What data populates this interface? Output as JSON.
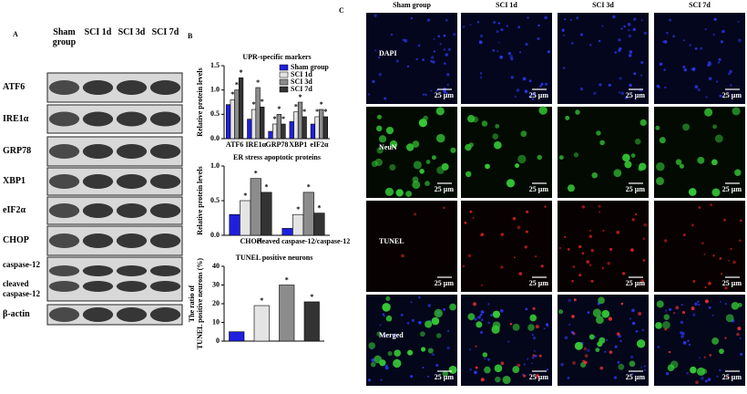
{
  "panel_labels": [
    "A",
    "B",
    "C"
  ],
  "blot": {
    "columns": [
      "Sham group",
      "SCI 1d",
      "SCI 3d",
      "SCI 7d"
    ],
    "rows": [
      "ATF6",
      "IRE1α",
      "GRP78",
      "XBP1",
      "eIF2α",
      "CHOP",
      "caspase-12",
      "cleaved caspase-12",
      "β-actin"
    ]
  },
  "chart_data": [
    {
      "type": "bar",
      "title": "UPR-specific markers",
      "y_label": "Relative protein levels",
      "categories": [
        "ATF6",
        "IRE1α",
        "GRP78",
        "XBP1",
        "eIF2α"
      ],
      "series": [
        {
          "name": "Sham group",
          "color": "#1f1fe0",
          "values": [
            0.7,
            0.4,
            0.15,
            0.35,
            0.3
          ]
        },
        {
          "name": "SCI 1d",
          "color": "#e4e4e4",
          "values": [
            0.8,
            0.6,
            0.3,
            0.55,
            0.45
          ],
          "annotations": [
            "*",
            "*",
            "*",
            "*",
            "*"
          ]
        },
        {
          "name": "SCI 3d",
          "color": "#8c8c8c",
          "values": [
            1.0,
            1.05,
            0.5,
            0.75,
            0.6
          ],
          "annotations": [
            "*",
            "*",
            "*",
            "*",
            "*"
          ]
        },
        {
          "name": "SCI 7d",
          "color": "#333333",
          "values": [
            1.25,
            0.65,
            0.3,
            0.45,
            0.45
          ],
          "annotations": [
            "*",
            "*",
            "*",
            "*",
            "*"
          ]
        }
      ],
      "ylim": [
        0,
        1.5
      ],
      "yticks": [
        {
          "value": 0,
          "label": "0.0"
        },
        0.5,
        {
          "value": 1,
          "label": "1.0"
        },
        1.5
      ],
      "legend": "upper right"
    },
    {
      "type": "bar",
      "title": "ER stress apoptotic proteins",
      "y_label": "Relative protein levels",
      "categories": [
        "CHOP",
        "cleaved caspase-12/caspase-12"
      ],
      "series": [
        {
          "name": "Sham group",
          "color": "#1f1fe0",
          "values": [
            0.3,
            0.1
          ]
        },
        {
          "name": "SCI 1d",
          "color": "#e4e4e4",
          "values": [
            0.5,
            0.3
          ],
          "annotations": [
            "*",
            "*"
          ]
        },
        {
          "name": "SCI 3d",
          "color": "#8c8c8c",
          "values": [
            0.82,
            0.62
          ],
          "annotations": [
            "*",
            "*"
          ]
        },
        {
          "name": "SCI 7d",
          "color": "#333333",
          "values": [
            0.62,
            0.32
          ],
          "annotations": [
            "*",
            "*"
          ]
        }
      ],
      "ylim": [
        0,
        1
      ],
      "yticks": [
        {
          "value": 0,
          "label": "0.0"
        },
        0.5,
        {
          "value": 1,
          "label": "1.0"
        }
      ]
    },
    {
      "type": "bar",
      "title": "TUNEL positive neurons",
      "y_label": [
        "The ratio of",
        "TUNEL positive neurons (%)"
      ],
      "categories": [
        null,
        null,
        null,
        null
      ],
      "values": [
        5,
        19,
        30,
        21
      ],
      "colors": [
        "#1f1fe0",
        "#e4e4e4",
        "#8c8c8c",
        "#333333"
      ],
      "annotations": [
        null,
        "*",
        "*",
        "*"
      ],
      "ylim": [
        0,
        40
      ],
      "yticks": [
        0,
        10,
        20,
        30,
        40
      ]
    }
  ],
  "images": {
    "columns": [
      "Sham group",
      "SCI 1d",
      "SCI 3d",
      "SCI 7d"
    ],
    "rows": [
      "DAPI",
      "NeuN",
      "TUNEL",
      "Merged"
    ],
    "scale_bar": "25 μm"
  }
}
